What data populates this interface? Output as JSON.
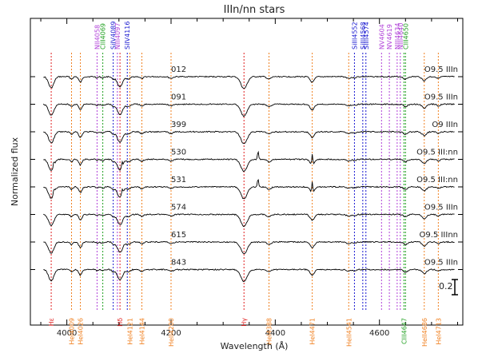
{
  "chart_data": {
    "type": "line",
    "title": "IIIn/nn stars",
    "xlabel": "Wavelength (Å)",
    "ylabel": "Normalized flux",
    "xlim": [
      3930,
      4760
    ],
    "x_ticks": [
      4000,
      4200,
      4400,
      4600
    ],
    "x_tick_labels": [
      "4000",
      "4200",
      "4400",
      "4600"
    ],
    "scale_bar_label": "0.2",
    "grid": false,
    "legend": "none",
    "series": [
      {
        "name": "012",
        "spectral_type": "O9.5 IIIn"
      },
      {
        "name": "091",
        "spectral_type": "O9.5 IIIn"
      },
      {
        "name": "399",
        "spectral_type": "O9 IIIn"
      },
      {
        "name": "530",
        "spectral_type": "O9.5 III:nn"
      },
      {
        "name": "531",
        "spectral_type": "O9.5 III:nn"
      },
      {
        "name": "574",
        "spectral_type": "O9.5 IIIn"
      },
      {
        "name": "615",
        "spectral_type": "O9.5 IIInn"
      },
      {
        "name": "843",
        "spectral_type": "O9.5 IIIn"
      }
    ],
    "top_lines": [
      {
        "label": "NII4058",
        "wavelength": 4058,
        "color": "#b040d8"
      },
      {
        "label": "CIII4069",
        "wavelength": 4069,
        "color": "#20a020"
      },
      {
        "label": "SiIV4089",
        "wavelength": 4089,
        "color": "#1818d0"
      },
      {
        "label": "NIII4097",
        "wavelength": 4097,
        "color": "#b040d8"
      },
      {
        "label": "SiIV4116",
        "wavelength": 4116,
        "color": "#1818d0"
      },
      {
        "label": "SiIII4552",
        "wavelength": 4552,
        "color": "#1818d0"
      },
      {
        "label": "SiIII4568",
        "wavelength": 4568,
        "color": "#1818d0"
      },
      {
        "label": "SiIII4574",
        "wavelength": 4574,
        "color": "#1818d0"
      },
      {
        "label": "NV4604",
        "wavelength": 4604,
        "color": "#b040d8"
      },
      {
        "label": "NV4619",
        "wavelength": 4619,
        "color": "#b040d8"
      },
      {
        "label": "NIII4634",
        "wavelength": 4634,
        "color": "#b040d8"
      },
      {
        "label": "NIII4640",
        "wavelength": 4640,
        "color": "#b040d8"
      },
      {
        "label": "CIII4650",
        "wavelength": 4650,
        "color": "#20a020"
      }
    ],
    "bottom_lines": [
      {
        "label": "Hε",
        "wavelength": 3970,
        "color": "#e02020"
      },
      {
        "label": "HeI4009",
        "wavelength": 4009,
        "color": "#f08020"
      },
      {
        "label": "HeI4026",
        "wavelength": 4026,
        "color": "#f08020"
      },
      {
        "label": "Hδ",
        "wavelength": 4102,
        "color": "#e02020"
      },
      {
        "label": "HeI4121",
        "wavelength": 4121,
        "color": "#f08020"
      },
      {
        "label": "HeI4144",
        "wavelength": 4144,
        "color": "#f08020"
      },
      {
        "label": "HeII4200",
        "wavelength": 4200,
        "color": "#f08020"
      },
      {
        "label": "Hγ",
        "wavelength": 4340,
        "color": "#e02020"
      },
      {
        "label": "HeI4388",
        "wavelength": 4388,
        "color": "#f08020"
      },
      {
        "label": "HeI4471",
        "wavelength": 4471,
        "color": "#f08020"
      },
      {
        "label": "HeII4541",
        "wavelength": 4541,
        "color": "#f08020"
      },
      {
        "label": "CIII4647",
        "wavelength": 4647,
        "color": "#20a020"
      },
      {
        "label": "HeII4686",
        "wavelength": 4686,
        "color": "#f08020"
      },
      {
        "label": "HeI4713",
        "wavelength": 4713,
        "color": "#f08020"
      }
    ]
  }
}
